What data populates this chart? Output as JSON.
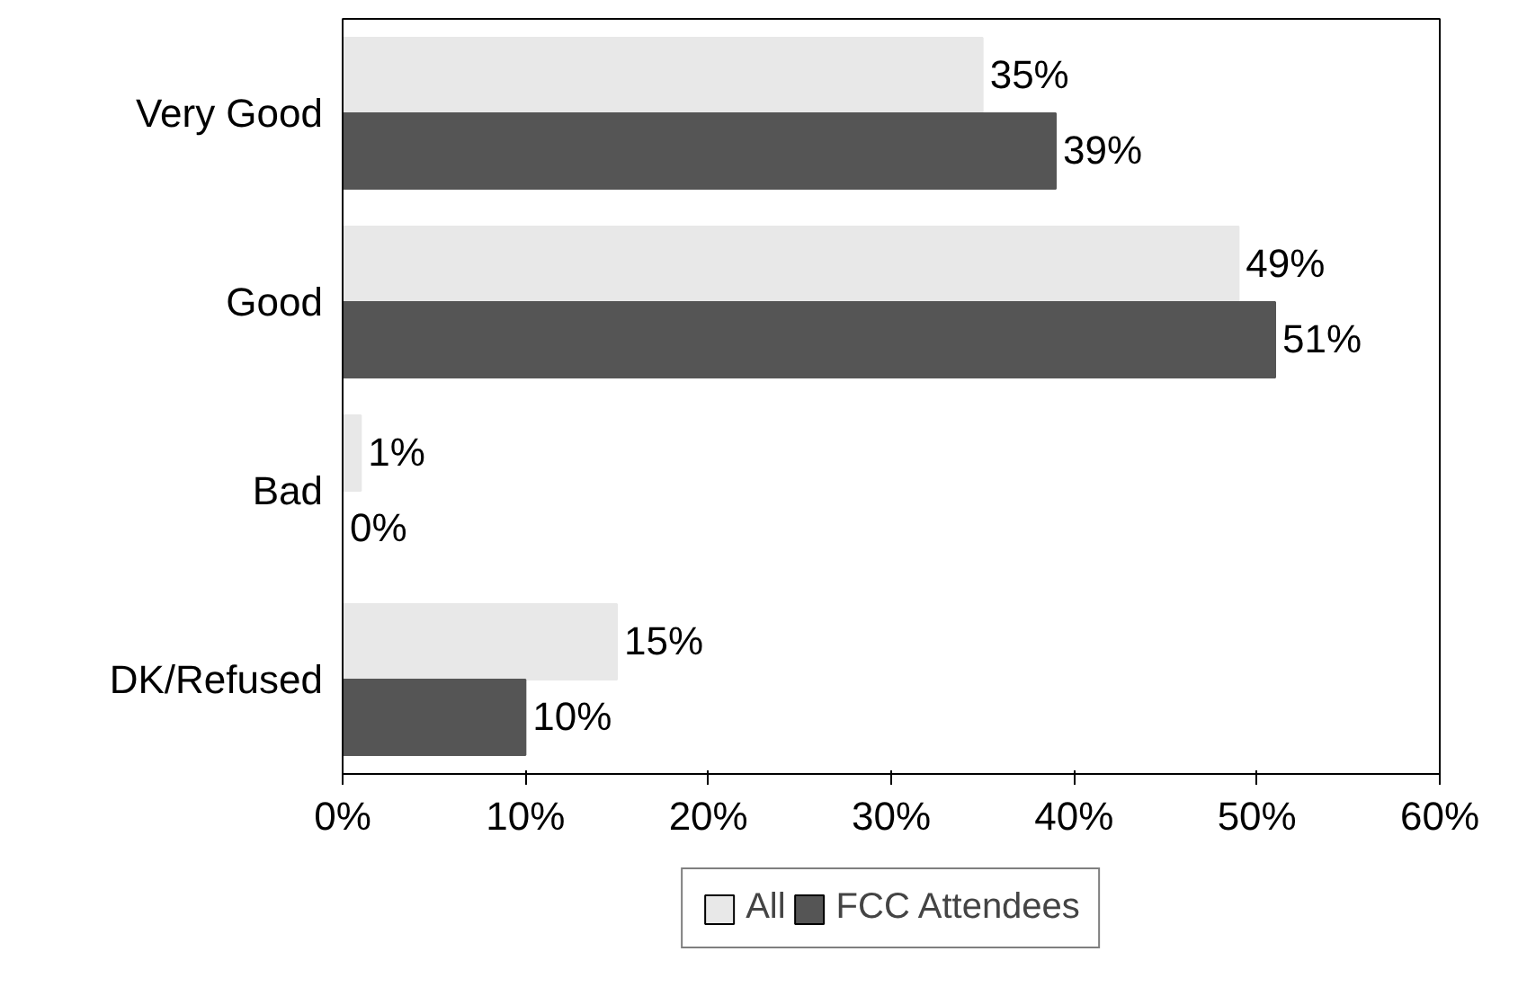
{
  "chart_data": {
    "type": "bar",
    "orientation": "horizontal",
    "categories": [
      "Very Good",
      "Good",
      "Bad",
      "DK/Refused"
    ],
    "series": [
      {
        "name": "All",
        "color": "#e8e8e8",
        "values": [
          35,
          49,
          1,
          15
        ],
        "value_labels": [
          "35%",
          "49%",
          "1%",
          "15%"
        ]
      },
      {
        "name": "FCC Attendees",
        "color": "#555555",
        "values": [
          39,
          51,
          0,
          10
        ],
        "value_labels": [
          "39%",
          "51%",
          "0%",
          "10%"
        ]
      }
    ],
    "xlim": [
      0,
      60
    ],
    "xticks": [
      {
        "value": 0,
        "label": "0%"
      },
      {
        "value": 10,
        "label": "10%"
      },
      {
        "value": 20,
        "label": "20%"
      },
      {
        "value": 30,
        "label": "30%"
      },
      {
        "value": 40,
        "label": "40%"
      },
      {
        "value": 50,
        "label": "50%"
      },
      {
        "value": 60,
        "label": "60%"
      }
    ],
    "grid": false,
    "legend": "bottom"
  }
}
